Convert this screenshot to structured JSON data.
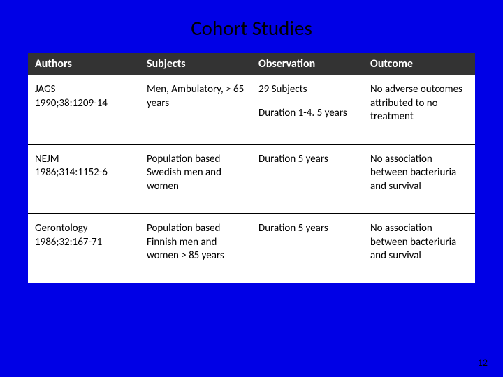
{
  "slide": {
    "title": "Cohort Studies",
    "page_number": "12",
    "background_color": "#0000e6",
    "header_bg": "#333333",
    "header_fg": "#ffffff",
    "cell_bg": "#ffffff",
    "cell_fg": "#000000",
    "title_fontsize": 29,
    "cell_fontsize": 15
  },
  "table": {
    "columns": [
      "Authors",
      "Subjects",
      "Observation",
      "Outcome"
    ],
    "rows": [
      {
        "authors_line1": "JAGS",
        "authors_line2": "1990;38:1209-14",
        "subjects": "Men, Ambulatory, > 65 years",
        "observation_line1": "29 Subjects",
        "observation_line2": "Duration 1-4. 5 years",
        "outcome": "No adverse outcomes attributed to no treatment"
      },
      {
        "authors_line1": "NEJM",
        "authors_line2": "1986;314:1152-6",
        "subjects": "Population based Swedish men and women",
        "observation_line1": "Duration 5 years",
        "observation_line2": "",
        "outcome": "No association between bacteriuria and survival"
      },
      {
        "authors_line1": "Gerontology",
        "authors_line2": "1986;32:167-71",
        "subjects": "Population based Finnish men and women > 85 years",
        "observation_line1": "Duration 5 years",
        "observation_line2": "",
        "outcome": "No association between bacteriuria and survival"
      }
    ]
  }
}
